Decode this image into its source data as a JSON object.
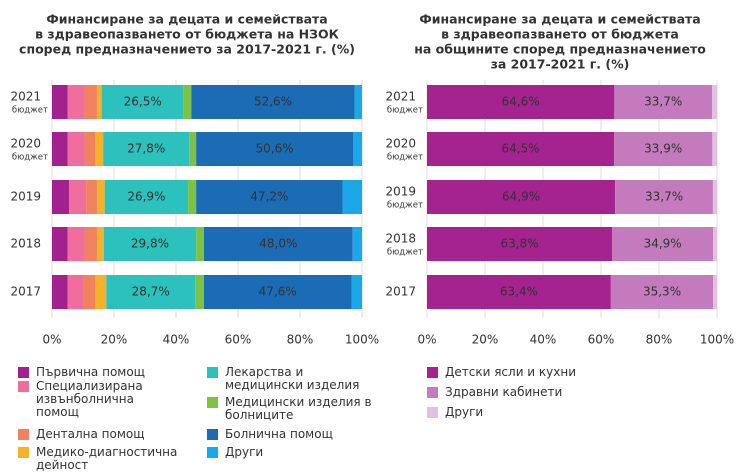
{
  "chart_data": [
    {
      "type": "stacked-bar-h",
      "title": [
        "Финансиране за децата и семействата",
        "в здравеопазването от бюджета на НЗОК",
        "според предназначението за 2017-2021 г. (%)"
      ],
      "categories": [
        "2021",
        "2020",
        "2019",
        "2018",
        "2017"
      ],
      "category_notes": [
        "бюджет",
        "бюджет",
        null,
        null,
        null
      ],
      "xlim": [
        0,
        100
      ],
      "xticks": [
        {
          "value": 0,
          "label": "0%"
        },
        {
          "value": 20,
          "label": "20%"
        },
        {
          "value": 40,
          "label": "40%"
        },
        {
          "value": 60,
          "label": "60%"
        },
        {
          "value": 80,
          "label": "80%"
        },
        {
          "value": 100,
          "label": "100%"
        }
      ],
      "series": [
        {
          "name": "Първична помощ",
          "color": "#a3218e",
          "values": [
            5,
            5,
            5.5,
            5,
            5
          ]
        },
        {
          "name": "Специализирана извънболнична помощ",
          "color": "#f06e9c",
          "values": [
            5.5,
            5.5,
            5.5,
            5.5,
            5
          ]
        },
        {
          "name": "Дентална помощ",
          "color": "#f0825e",
          "values": [
            4,
            3.5,
            3.5,
            4,
            4
          ]
        },
        {
          "name": "Медико-диагностична дейност",
          "color": "#f6b12b",
          "values": [
            1.5,
            2.5,
            2.5,
            2.2,
            3.5
          ]
        },
        {
          "name": "Лекарства и медицински изделия",
          "color": "#2dc1be",
          "values": [
            26.5,
            27.8,
            26.9,
            29.8,
            28.7
          ],
          "value_labels": [
            "26,5%",
            "27,8%",
            "26,9%",
            "29,8%",
            "28,7%"
          ]
        },
        {
          "name": "Медицински изделия в болниците",
          "color": "#7dc243",
          "values": [
            2.5,
            2.2,
            2.6,
            2.5,
            2.8
          ]
        },
        {
          "name": "Болнична помощ",
          "color": "#1b6cb4",
          "values": [
            52.6,
            50.6,
            47.2,
            48.0,
            47.6
          ],
          "value_labels": [
            "52,6%",
            "50,6%",
            "47,2%",
            "48,0%",
            "47,6%"
          ]
        },
        {
          "name": "Други",
          "color": "#1ba7e8",
          "values": [
            2.4,
            2.9,
            6.3,
            3.0,
            3.4
          ]
        }
      ]
    },
    {
      "type": "stacked-bar-h",
      "title": [
        "Финансиране за децата и семействата",
        "в здравеопазването от бюджета",
        "на общините според предназначението",
        "за 2017-2021 г. (%)"
      ],
      "categories": [
        "2021",
        "2020",
        "2019",
        "2018",
        "2017"
      ],
      "category_notes": [
        "бюджет",
        "бюджет",
        "бюджет",
        "бюджет",
        null
      ],
      "xlim": [
        0,
        100
      ],
      "xticks": [
        {
          "value": 0,
          "label": "0%"
        },
        {
          "value": 20,
          "label": "20%"
        },
        {
          "value": 40,
          "label": "40%"
        },
        {
          "value": 60,
          "label": "60%"
        },
        {
          "value": 80,
          "label": "80%"
        },
        {
          "value": 100,
          "label": "100%"
        }
      ],
      "series": [
        {
          "name": "Детски ясли и кухни",
          "color": "#a4238f",
          "values": [
            64.6,
            64.5,
            64.9,
            63.8,
            63.4
          ],
          "value_labels": [
            "64,6%",
            "64,5%",
            "64,9%",
            "63,8%",
            "63,4%"
          ]
        },
        {
          "name": "Здравни кабинети",
          "color": "#c47bbd",
          "values": [
            33.7,
            33.9,
            33.7,
            34.9,
            35.3
          ],
          "value_labels": [
            "33,7%",
            "33,9%",
            "33,7%",
            "34,9%",
            "35,3%"
          ]
        },
        {
          "name": "Други",
          "color": "#e3c0df",
          "values": [
            1.7,
            1.6,
            1.4,
            1.3,
            1.3
          ]
        }
      ]
    }
  ]
}
